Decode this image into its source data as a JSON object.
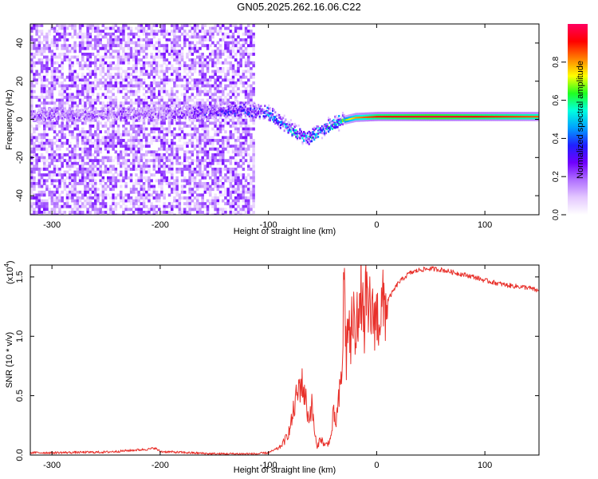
{
  "title": "GN05.2025.262.16.06.C22",
  "chart_data": [
    {
      "type": "heatmap",
      "description_role": "spectrogram",
      "xlabel": "Height of straight line (km)",
      "ylabel": "Frequency (Hz)",
      "xlim": [
        -320,
        150
      ],
      "ylim": [
        -50,
        50
      ],
      "xticks": [
        -300,
        -200,
        -100,
        0,
        100
      ],
      "xtick_labels": [
        "-300",
        "-200",
        "-100",
        "0",
        "100"
      ],
      "yticks": [
        -40,
        -20,
        0,
        20,
        40
      ],
      "ytick_labels": [
        "-40",
        "-20",
        "0",
        "20",
        "40"
      ],
      "colorbar": {
        "label": "Normalized spectral amplitude",
        "range": [
          0,
          1
        ],
        "ticks": [
          0.0,
          0.2,
          0.4,
          0.6,
          0.8
        ],
        "tick_labels": [
          "0.0",
          "0.2",
          "0.4",
          "0.6",
          "0.8"
        ],
        "colors": [
          "#ffffff",
          "#e4c8ff",
          "#b070ff",
          "#7000ff",
          "#2020ff",
          "#00a0ff",
          "#00ffe0",
          "#20ff20",
          "#ffff00",
          "#ff8000",
          "#ff0000",
          "#ff0060"
        ]
      },
      "noise_region": {
        "x": [
          -320,
          -113
        ],
        "y": [
          -50,
          50
        ],
        "amplitude": 0.12
      },
      "signal_track": [
        {
          "x": -320,
          "y": 2,
          "amplitude": 0.22
        },
        {
          "x": -200,
          "y": 3,
          "amplitude": 0.2
        },
        {
          "x": -120,
          "y": 5,
          "amplitude": 0.35
        },
        {
          "x": -100,
          "y": 3,
          "amplitude": 0.45
        },
        {
          "x": -80,
          "y": -5,
          "amplitude": 0.45
        },
        {
          "x": -65,
          "y": -10,
          "amplitude": 0.45
        },
        {
          "x": -50,
          "y": -5,
          "amplitude": 0.5
        },
        {
          "x": -35,
          "y": -1,
          "amplitude": 0.6
        },
        {
          "x": -20,
          "y": 1,
          "amplitude": 0.8
        },
        {
          "x": 0,
          "y": 1.5,
          "amplitude": 0.9
        },
        {
          "x": 50,
          "y": 1.5,
          "amplitude": 0.95
        },
        {
          "x": 100,
          "y": 1.5,
          "amplitude": 0.9
        },
        {
          "x": 150,
          "y": 1.5,
          "amplitude": 0.85
        }
      ]
    },
    {
      "type": "line",
      "xlabel": "Height of straight line (km)",
      "ylabel": "SNR (10 * v/v)",
      "y_multiplier_label": "(x10",
      "y_multiplier_exp": "4",
      "y_multiplier_close": ")",
      "xlim": [
        -320,
        150
      ],
      "ylim": [
        0,
        1.6
      ],
      "xticks": [
        -300,
        -200,
        -100,
        0,
        100
      ],
      "xtick_labels": [
        "-300",
        "-200",
        "-100",
        "0",
        "100"
      ],
      "yticks": [
        0.0,
        0.5,
        1.0,
        1.5
      ],
      "ytick_labels": [
        "0.0",
        "0.5",
        "1.0",
        "1.5"
      ],
      "color": "#e8302a",
      "series": [
        {
          "name": "SNR",
          "x": [
            -320,
            -300,
            -250,
            -210,
            -205,
            -200,
            -150,
            -110,
            -100,
            -90,
            -85,
            -80,
            -75,
            -70,
            -66,
            -63,
            -60,
            -57,
            -55,
            -52,
            -48,
            -45,
            -42,
            -40,
            -38,
            -35,
            -32,
            -30,
            -28,
            -26,
            -24,
            -22,
            -20,
            -18,
            -16,
            -14,
            -12,
            -10,
            -8,
            -6,
            -4,
            -2,
            0,
            5,
            10,
            20,
            30,
            40,
            50,
            60,
            70,
            80,
            90,
            100,
            110,
            120,
            130,
            140,
            150
          ],
          "y": [
            0.02,
            0.02,
            0.025,
            0.05,
            0.06,
            0.03,
            0.01,
            0.01,
            0.02,
            0.06,
            0.12,
            0.22,
            0.45,
            0.62,
            0.5,
            0.3,
            0.42,
            0.18,
            0.05,
            0.15,
            0.08,
            0.1,
            0.15,
            0.35,
            0.25,
            0.45,
            0.7,
            1.55,
            0.8,
            1.2,
            0.85,
            1.25,
            0.95,
            1.4,
            1.05,
            1.45,
            1.0,
            1.35,
            1.1,
            1.3,
            1.12,
            1.2,
            1.15,
            1.22,
            1.3,
            1.45,
            1.53,
            1.56,
            1.57,
            1.56,
            1.54,
            1.52,
            1.5,
            1.47,
            1.45,
            1.43,
            1.42,
            1.41,
            1.38
          ]
        }
      ]
    }
  ]
}
